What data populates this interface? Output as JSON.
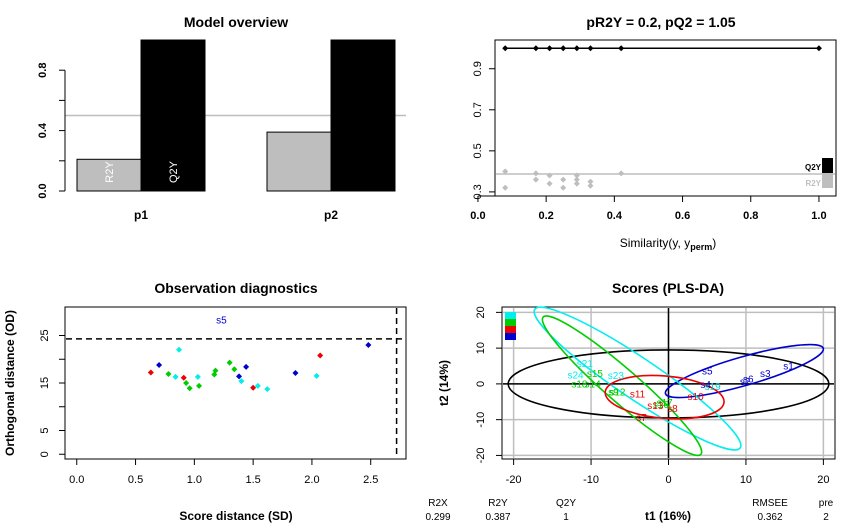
{
  "panels": [
    {
      "id": "overview",
      "type": "bar",
      "title": "Model overview",
      "categories": [
        "p1",
        "p2"
      ],
      "series": [
        {
          "name": "R2Y",
          "values": [
            0.21,
            0.39
          ],
          "color": "#bebebe"
        },
        {
          "name": "Q2Y",
          "values": [
            1.0,
            1.0
          ],
          "color": "#000000"
        }
      ],
      "bar_labels": [
        "R2Y",
        "Q2Y"
      ],
      "reference_line": 0.5,
      "ylim": [
        0,
        1.0
      ],
      "yticks": [
        "0.0",
        "0.4",
        "0.8"
      ]
    },
    {
      "id": "permutation",
      "type": "scatter",
      "title": "pR2Y = 0.2, pQ2 = 1.05",
      "xlabel": "Similarity(y, y",
      "xlabel_sub": "perm",
      "xlabel_close": ")",
      "xlim": [
        0.05,
        1.05
      ],
      "ylim": [
        0.28,
        1.04
      ],
      "xticks": [
        "0.0",
        "0.2",
        "0.4",
        "0.6",
        "0.8",
        "1.0"
      ],
      "yticks": [
        "0.3",
        "0.5",
        "0.7",
        "0.9"
      ],
      "reference_line": 0.387,
      "q2y_points": [
        [
          0.08,
          1.0
        ],
        [
          0.17,
          1.0
        ],
        [
          0.21,
          1.0
        ],
        [
          0.25,
          1.0
        ],
        [
          0.29,
          1.0
        ],
        [
          0.33,
          1.0
        ],
        [
          0.42,
          1.0
        ],
        [
          1.0,
          1.0
        ]
      ],
      "r2y_points": [
        [
          0.08,
          0.4
        ],
        [
          0.08,
          0.32
        ],
        [
          0.17,
          0.39
        ],
        [
          0.17,
          0.36
        ],
        [
          0.21,
          0.38
        ],
        [
          0.21,
          0.34
        ],
        [
          0.25,
          0.36
        ],
        [
          0.25,
          0.32
        ],
        [
          0.29,
          0.38
        ],
        [
          0.29,
          0.36
        ],
        [
          0.29,
          0.34
        ],
        [
          0.33,
          0.35
        ],
        [
          0.33,
          0.33
        ],
        [
          0.42,
          0.39
        ]
      ],
      "legend": [
        "Q2Y",
        "R2Y"
      ],
      "legend_colors": [
        "#000000",
        "#bebebe"
      ]
    },
    {
      "id": "diagnostics",
      "type": "scatter",
      "title": "Observation diagnostics",
      "xlabel": "Score distance (SD)",
      "ylabel": "Orthogonal distance (OD)",
      "xlim": [
        -0.1,
        2.8
      ],
      "ylim": [
        -1,
        31
      ],
      "xticks": [
        "0.0",
        "0.5",
        "1.0",
        "1.5",
        "2.0",
        "2.5"
      ],
      "yticks": [
        "0",
        "5",
        "15",
        "25"
      ],
      "x_cutoff": 2.72,
      "y_cutoff": 24.3,
      "outlier_label": "s5",
      "outlier_point": [
        1.23,
        28.4
      ],
      "points": [
        {
          "x": 0.63,
          "y": 17.2,
          "c": "#ee0000"
        },
        {
          "x": 0.7,
          "y": 18.8,
          "c": "#0000cd"
        },
        {
          "x": 0.78,
          "y": 16.9,
          "c": "#00cd00"
        },
        {
          "x": 0.84,
          "y": 16.3,
          "c": "#00eeee"
        },
        {
          "x": 0.87,
          "y": 22.0,
          "c": "#00eeee"
        },
        {
          "x": 0.91,
          "y": 16.1,
          "c": "#ee0000"
        },
        {
          "x": 0.93,
          "y": 15.0,
          "c": "#00cd00"
        },
        {
          "x": 0.96,
          "y": 13.9,
          "c": "#00cd00"
        },
        {
          "x": 1.03,
          "y": 16.3,
          "c": "#00eeee"
        },
        {
          "x": 1.04,
          "y": 14.4,
          "c": "#00cd00"
        },
        {
          "x": 1.17,
          "y": 16.8,
          "c": "#00cd00"
        },
        {
          "x": 1.18,
          "y": 17.6,
          "c": "#00cd00"
        },
        {
          "x": 1.3,
          "y": 19.3,
          "c": "#00cd00"
        },
        {
          "x": 1.34,
          "y": 17.9,
          "c": "#00cd00"
        },
        {
          "x": 1.38,
          "y": 16.4,
          "c": "#0000cd"
        },
        {
          "x": 1.4,
          "y": 15.4,
          "c": "#00eeee"
        },
        {
          "x": 1.44,
          "y": 18.4,
          "c": "#0000cd"
        },
        {
          "x": 1.5,
          "y": 14.0,
          "c": "#ee0000"
        },
        {
          "x": 1.54,
          "y": 14.4,
          "c": "#00eeee"
        },
        {
          "x": 1.62,
          "y": 13.7,
          "c": "#00eeee"
        },
        {
          "x": 1.86,
          "y": 17.1,
          "c": "#0000cd"
        },
        {
          "x": 2.04,
          "y": 16.5,
          "c": "#00eeee"
        },
        {
          "x": 2.07,
          "y": 20.8,
          "c": "#ee0000"
        },
        {
          "x": 2.48,
          "y": 23.0,
          "c": "#0000cd"
        }
      ]
    },
    {
      "id": "scores",
      "type": "scatter",
      "title": "Scores (PLS-DA)",
      "xlabel": "t1 (16%)",
      "ylabel": "t2 (14%)",
      "xlim": [
        -21.5,
        21.5
      ],
      "ylim": [
        -21,
        21.5
      ],
      "xticks": [
        "-20",
        "-10",
        "0",
        "10",
        "20"
      ],
      "yticks": [
        "-20",
        "-10",
        "0",
        "10",
        "20"
      ],
      "legend_colors": [
        "#00eeee",
        "#00cd00",
        "#ee0000",
        "#0000cd"
      ],
      "labels": [
        {
          "t": "s1",
          "x": 15.5,
          "y": 4.8,
          "c": "#0000cd"
        },
        {
          "t": "s3",
          "x": 12.5,
          "y": 2.8,
          "c": "#0000cd"
        },
        {
          "t": "s5",
          "x": 5.0,
          "y": 3.5,
          "c": "#0000cd"
        },
        {
          "t": "s6",
          "x": 10.3,
          "y": 1.2,
          "c": "#0000cd"
        },
        {
          "t": "s2",
          "x": 9.9,
          "y": 0.5,
          "c": "#0000cd"
        },
        {
          "t": "s4",
          "x": 4.8,
          "y": -0.3,
          "c": "#0000cd"
        },
        {
          "t": "s19",
          "x": 5.7,
          "y": -0.8,
          "c": "#00cdcd"
        },
        {
          "t": "s21",
          "x": -10.8,
          "y": 5.6,
          "c": "#00eeee"
        },
        {
          "t": "s24",
          "x": -12.0,
          "y": 2.4,
          "c": "#00eeee"
        },
        {
          "t": "s15",
          "x": -9.5,
          "y": 2.8,
          "c": "#00cd00"
        },
        {
          "t": "s23",
          "x": -6.8,
          "y": 2.2,
          "c": "#00eeee"
        },
        {
          "t": "s18",
          "x": -11.5,
          "y": -0.2,
          "c": "#00cd00"
        },
        {
          "t": "s14",
          "x": -9.8,
          "y": -0.2,
          "c": "#00cd00"
        },
        {
          "t": "s9",
          "x": -7.1,
          "y": -2.4,
          "c": "#00cd00"
        },
        {
          "t": "s12",
          "x": -6.6,
          "y": -2.4,
          "c": "#00cd00"
        },
        {
          "t": "s11",
          "x": -4.0,
          "y": -3.0,
          "c": "#ee0000"
        },
        {
          "t": "s10",
          "x": 3.5,
          "y": -3.7,
          "c": "#ee0000"
        },
        {
          "t": "s17",
          "x": -0.5,
          "y": -5.3,
          "c": "#00cd00"
        },
        {
          "t": "s16",
          "x": -1.0,
          "y": -5.9,
          "c": "#00cd00"
        },
        {
          "t": "s13",
          "x": -1.7,
          "y": -6.2,
          "c": "#ee0000"
        },
        {
          "t": "s8",
          "x": 0.5,
          "y": -7.0,
          "c": "#ee0000"
        },
        {
          "t": "s7",
          "x": -3.5,
          "y": -9.5,
          "c": "#ee0000"
        }
      ],
      "ellipses": [
        {
          "cx": 0,
          "cy": 0,
          "rx": 20.7,
          "ry": 9.5,
          "angle": 0,
          "c": "#000000"
        },
        {
          "cx": 9.8,
          "cy": 3.6,
          "rx": 10.6,
          "ry": 4.0,
          "angle": 16,
          "c": "#0000cd"
        },
        {
          "cx": -4.0,
          "cy": 1.5,
          "rx": 16.0,
          "ry": 5.7,
          "angle": -34,
          "c": "#00eeee"
        },
        {
          "cx": -6.0,
          "cy": -0.5,
          "rx": 13.5,
          "ry": 4.6,
          "angle": -41,
          "c": "#00cd00"
        },
        {
          "cx": -0.5,
          "cy": -3.7,
          "rx": 7.7,
          "ry": 5.9,
          "angle": -5,
          "c": "#ee0000"
        }
      ],
      "summary": {
        "headers": [
          "R2X",
          "R2Y",
          "Q2Y",
          "RMSEE",
          "pre"
        ],
        "values": [
          "0.299",
          "0.387",
          "1",
          "0.362",
          "2"
        ]
      }
    }
  ],
  "colors": {
    "grey": "#bebebe",
    "grid": "#bebebe"
  }
}
